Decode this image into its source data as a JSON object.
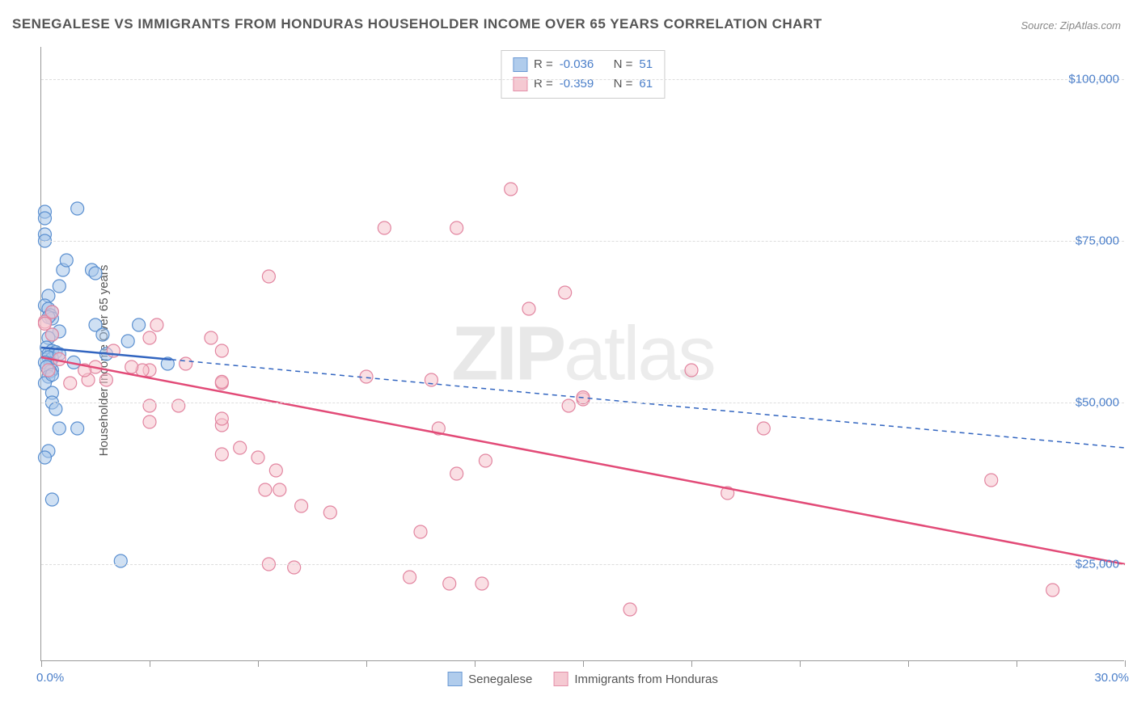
{
  "title": "SENEGALESE VS IMMIGRANTS FROM HONDURAS HOUSEHOLDER INCOME OVER 65 YEARS CORRELATION CHART",
  "source": "Source: ZipAtlas.com",
  "ylabel": "Householder Income Over 65 years",
  "watermark_a": "ZIP",
  "watermark_b": "atlas",
  "chart": {
    "type": "scatter",
    "xlim": [
      0,
      30
    ],
    "ylim": [
      10000,
      105000
    ],
    "xlim_label_left": "0.0%",
    "xlim_label_right": "30.0%",
    "ytick_values": [
      25000,
      50000,
      75000,
      100000
    ],
    "ytick_labels": [
      "$25,000",
      "$50,000",
      "$75,000",
      "$100,000"
    ],
    "xtick_values": [
      0,
      3,
      6,
      9,
      12,
      15,
      18,
      21,
      24,
      27,
      30
    ],
    "grid_color": "#dddddd",
    "background_color": "#ffffff",
    "axis_color": "#999999",
    "marker_radius": 8,
    "marker_stroke_width": 1.2,
    "series": [
      {
        "name": "Senegalese",
        "fill_color": "#a8c7ea",
        "stroke_color": "#5a8fd0",
        "fill_opacity": 0.55,
        "R": "-0.036",
        "N": "51",
        "trend": {
          "x1": 0,
          "y1": 58500,
          "x2": 30,
          "y2": 43000,
          "solid_until_x": 3.6,
          "color": "#3265c0",
          "width": 2.5
        },
        "points": [
          [
            0.1,
            79500
          ],
          [
            0.1,
            78500
          ],
          [
            1.0,
            80000
          ],
          [
            0.1,
            76000
          ],
          [
            0.1,
            75000
          ],
          [
            0.5,
            68000
          ],
          [
            0.6,
            70500
          ],
          [
            1.4,
            70500
          ],
          [
            1.5,
            70000
          ],
          [
            0.2,
            66500
          ],
          [
            0.7,
            72000
          ],
          [
            0.1,
            65000
          ],
          [
            0.2,
            64500
          ],
          [
            0.3,
            64000
          ],
          [
            0.25,
            63500
          ],
          [
            0.3,
            63000
          ],
          [
            0.2,
            63200
          ],
          [
            0.5,
            61000
          ],
          [
            0.3,
            60500
          ],
          [
            0.2,
            60000
          ],
          [
            1.5,
            62000
          ],
          [
            1.7,
            60500
          ],
          [
            2.7,
            62000
          ],
          [
            0.15,
            58500
          ],
          [
            0.3,
            58000
          ],
          [
            0.2,
            57500
          ],
          [
            0.4,
            57800
          ],
          [
            0.3,
            56800
          ],
          [
            0.2,
            57000
          ],
          [
            0.25,
            56000
          ],
          [
            0.1,
            56200
          ],
          [
            0.3,
            55000
          ],
          [
            0.25,
            54800
          ],
          [
            0.15,
            55500
          ],
          [
            0.2,
            54000
          ],
          [
            0.1,
            53000
          ],
          [
            0.3,
            54300
          ],
          [
            0.9,
            56200
          ],
          [
            0.5,
            57500
          ],
          [
            1.8,
            57500
          ],
          [
            2.4,
            59500
          ],
          [
            3.5,
            56000
          ],
          [
            0.3,
            51500
          ],
          [
            0.3,
            50000
          ],
          [
            0.4,
            49000
          ],
          [
            0.5,
            46000
          ],
          [
            1.0,
            46000
          ],
          [
            0.2,
            42500
          ],
          [
            0.1,
            41500
          ],
          [
            0.3,
            35000
          ],
          [
            2.2,
            25500
          ]
        ]
      },
      {
        "name": "Immigrants from Honduras",
        "fill_color": "#f5c4ce",
        "stroke_color": "#e285a0",
        "fill_opacity": 0.55,
        "R": "-0.359",
        "N": "61",
        "trend": {
          "x1": 0,
          "y1": 57000,
          "x2": 30,
          "y2": 25000,
          "solid_until_x": 30,
          "color": "#e24a77",
          "width": 2.5
        },
        "points": [
          [
            13.0,
            83000
          ],
          [
            9.5,
            77000
          ],
          [
            11.5,
            77000
          ],
          [
            6.3,
            69500
          ],
          [
            14.5,
            67000
          ],
          [
            13.5,
            64500
          ],
          [
            18.0,
            55000
          ],
          [
            15.0,
            50500
          ],
          [
            15.0,
            50800
          ],
          [
            20.0,
            46000
          ],
          [
            26.3,
            38000
          ],
          [
            28.0,
            21000
          ],
          [
            19.0,
            36000
          ],
          [
            16.3,
            18000
          ],
          [
            12.2,
            22000
          ],
          [
            11.3,
            22000
          ],
          [
            10.2,
            23000
          ],
          [
            10.5,
            30000
          ],
          [
            11.5,
            39000
          ],
          [
            12.3,
            41000
          ],
          [
            11.0,
            46000
          ],
          [
            14.6,
            49500
          ],
          [
            9.0,
            54000
          ],
          [
            10.8,
            53500
          ],
          [
            7.0,
            24500
          ],
          [
            6.3,
            25000
          ],
          [
            8.0,
            33000
          ],
          [
            7.2,
            34000
          ],
          [
            6.2,
            36500
          ],
          [
            6.6,
            36500
          ],
          [
            6.5,
            39500
          ],
          [
            6.0,
            41500
          ],
          [
            5.0,
            42000
          ],
          [
            5.5,
            43000
          ],
          [
            5.0,
            46500
          ],
          [
            5.0,
            47500
          ],
          [
            5.0,
            53000
          ],
          [
            5.0,
            53200
          ],
          [
            4.0,
            56000
          ],
          [
            5.0,
            58000
          ],
          [
            4.7,
            60000
          ],
          [
            3.8,
            49500
          ],
          [
            3.0,
            49500
          ],
          [
            3.0,
            47000
          ],
          [
            3.0,
            55000
          ],
          [
            2.8,
            55000
          ],
          [
            3.0,
            60000
          ],
          [
            3.2,
            62000
          ],
          [
            2.5,
            55500
          ],
          [
            2.0,
            58000
          ],
          [
            1.8,
            53500
          ],
          [
            1.5,
            55500
          ],
          [
            1.3,
            53500
          ],
          [
            1.2,
            55000
          ],
          [
            0.8,
            53000
          ],
          [
            0.2,
            55000
          ],
          [
            0.5,
            56700
          ],
          [
            0.3,
            60500
          ],
          [
            0.1,
            62500
          ],
          [
            0.1,
            62200
          ],
          [
            0.3,
            64000
          ]
        ]
      }
    ]
  },
  "stats_box": {
    "label_R": "R =",
    "label_N": "N ="
  },
  "legend": {
    "series1_label": "Senegalese",
    "series2_label": "Immigrants from Honduras"
  }
}
